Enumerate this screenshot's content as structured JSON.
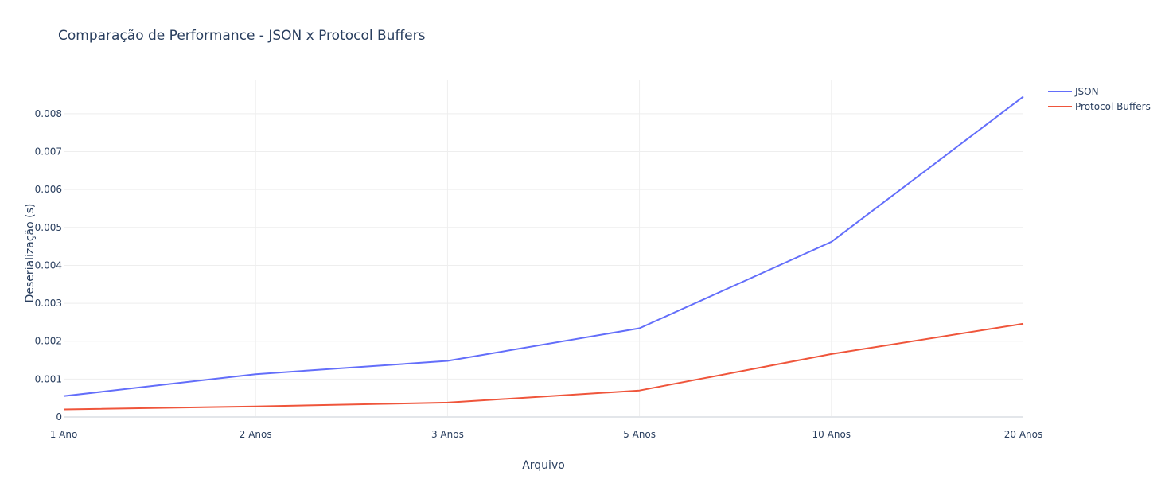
{
  "chart_data": {
    "type": "line",
    "title": "Comparação de Performance - JSON x Protocol Buffers",
    "xlabel": "Arquivo",
    "ylabel": "Deserialização (s)",
    "categories": [
      "1 Ano",
      "2 Anos",
      "3 Anos",
      "5 Anos",
      "10 Anos",
      "20 Anos"
    ],
    "ylim": [
      0,
      0.0089
    ],
    "y_ticks": [
      0,
      0.001,
      0.002,
      0.003,
      0.004,
      0.005,
      0.006,
      0.007,
      0.008
    ],
    "y_tick_labels": [
      "0",
      "0.001",
      "0.002",
      "0.003",
      "0.004",
      "0.005",
      "0.006",
      "0.007",
      "0.008"
    ],
    "grid": true,
    "legend_position": "top-right",
    "series": [
      {
        "name": "JSON",
        "color": "#636efa",
        "values": [
          0.00055,
          0.00113,
          0.00148,
          0.00234,
          0.00462,
          0.00845
        ]
      },
      {
        "name": "Protocol Buffers",
        "color": "#ef553b",
        "values": [
          0.0002,
          0.00028,
          0.00038,
          0.0007,
          0.00166,
          0.00246
        ]
      }
    ]
  }
}
